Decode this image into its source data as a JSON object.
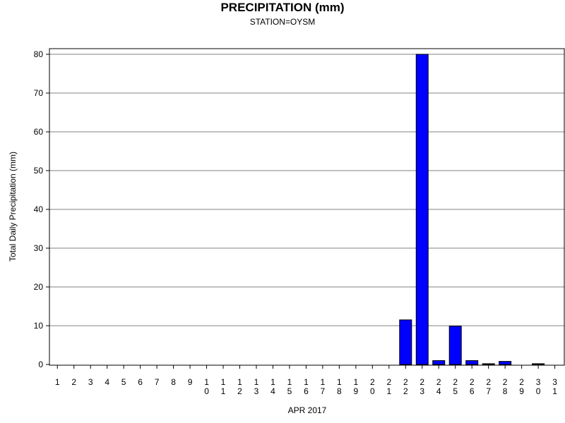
{
  "chart_data": {
    "type": "bar",
    "title": "PRECIPITATION (mm)",
    "subtitle": "STATION=OYSM",
    "xlabel": "APR 2017",
    "ylabel": "Total Daily Precipitation (mm)",
    "categories": [
      "1",
      "2",
      "3",
      "4",
      "5",
      "6",
      "7",
      "8",
      "9",
      "10",
      "11",
      "12",
      "13",
      "14",
      "15",
      "16",
      "17",
      "18",
      "19",
      "20",
      "21",
      "22",
      "23",
      "24",
      "25",
      "26",
      "27",
      "28",
      "29",
      "30",
      "31"
    ],
    "values": [
      0,
      0,
      0,
      0,
      0,
      0,
      0,
      0,
      0,
      0,
      0,
      0,
      0,
      0,
      0,
      0,
      0,
      0,
      0,
      0,
      0,
      11.5,
      80,
      1,
      9.9,
      1,
      0.2,
      0.8,
      0,
      0.2,
      null
    ],
    "ylim": [
      0,
      80
    ],
    "yticks": [
      0,
      10,
      20,
      30,
      40,
      50,
      60,
      70,
      80
    ],
    "grid": true,
    "bar_color": "#0000ff"
  }
}
